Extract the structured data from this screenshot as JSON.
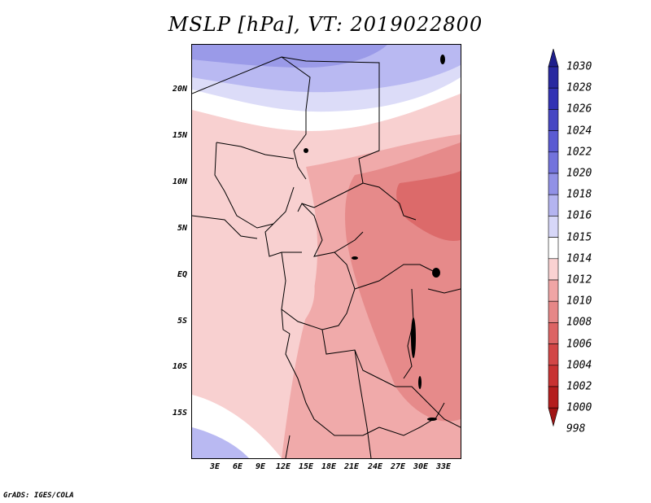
{
  "title": "MSLP [hPa], VT: 2019022800",
  "footer": "GrADS: IGES/COLA",
  "lat_labels": [
    "20N",
    "15N",
    "10N",
    "5N",
    "EQ",
    "5S",
    "10S",
    "15S"
  ],
  "lon_labels": [
    "3E",
    "6E",
    "9E",
    "12E",
    "15E",
    "18E",
    "21E",
    "24E",
    "27E",
    "30E",
    "33E"
  ],
  "colorbar": {
    "levels": [
      "1030",
      "1028",
      "1026",
      "1024",
      "1022",
      "1020",
      "1018",
      "1016",
      "1015",
      "1014",
      "1012",
      "1010",
      "1008",
      "1006",
      "1004",
      "1002",
      "1000",
      "998"
    ],
    "colors": [
      "#1e1e8c",
      "#2828a0",
      "#3232b4",
      "#4646c3",
      "#5a5ad2",
      "#7373dc",
      "#9191e6",
      "#b4b4f0",
      "#d7d7f8",
      "#ffffff",
      "#fad2d2",
      "#f0a5a5",
      "#e68787",
      "#dc6464",
      "#d24646",
      "#c83232",
      "#b41e1e",
      "#a01414"
    ]
  },
  "map_fill_colors": {
    "high_blue_1": "#9a9ae8",
    "high_blue_2": "#b9b9f2",
    "high_blue_3": "#dcdcf8",
    "neutral": "#ffffff",
    "light_pink": "#f8d0d0",
    "pink": "#f0aaaa",
    "mid_red": "#e68a8a",
    "dark_red": "#dc6a6a"
  }
}
